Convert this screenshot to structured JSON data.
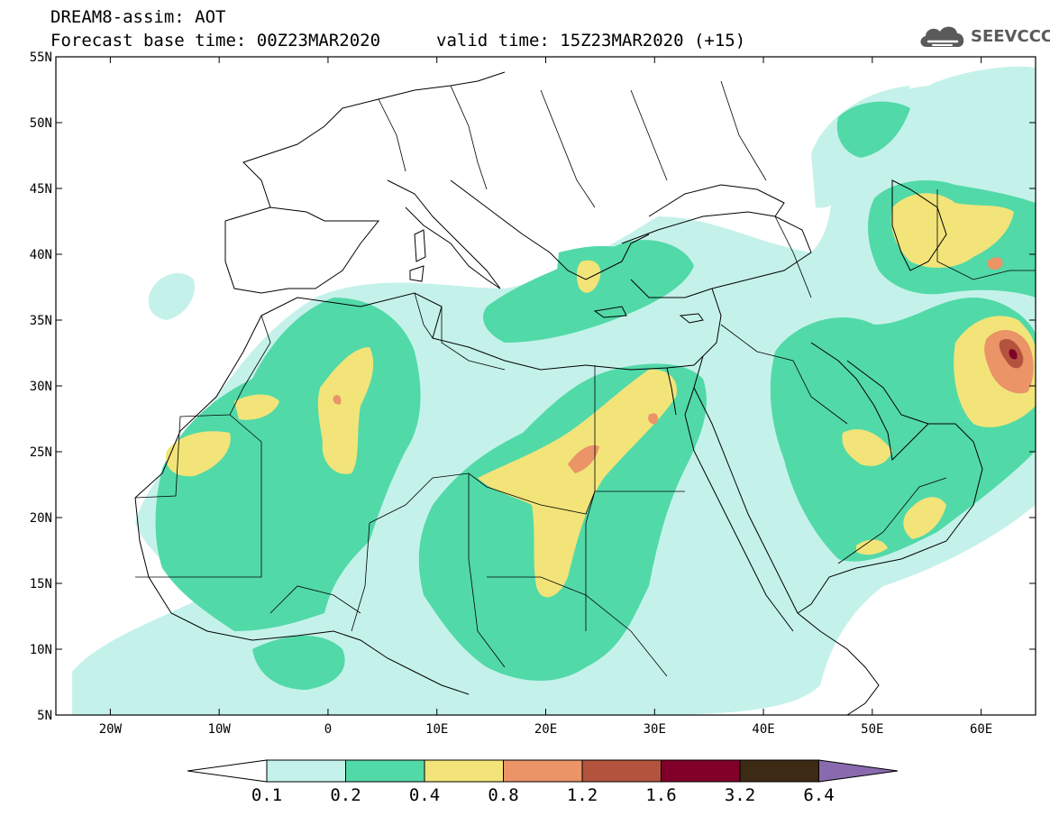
{
  "title": {
    "model": "DREAM8-assim: AOT",
    "base_time": "Forecast base time: 00Z23MAR2020",
    "valid_time": "valid time: 15Z23MAR2020 (+15)"
  },
  "logo": {
    "text": "SEEVCCC",
    "icon": "cloud-logo-icon"
  },
  "map": {
    "lat_labels": [
      "55N",
      "50N",
      "45N",
      "40N",
      "35N",
      "30N",
      "25N",
      "20N",
      "15N",
      "10N",
      "5N"
    ],
    "lon_labels": [
      "20W",
      "10W",
      "0",
      "10E",
      "20E",
      "30E",
      "40E",
      "50E",
      "60E"
    ],
    "extent": {
      "lon": [
        -25,
        65
      ],
      "lat": [
        5,
        55
      ]
    }
  },
  "legend": {
    "labels": [
      "0.1",
      "0.2",
      "0.4",
      "0.8",
      "1.2",
      "1.6",
      "3.2",
      "6.4"
    ],
    "colors": [
      "#ffffff",
      "#c4f2ea",
      "#52d9a8",
      "#f2e479",
      "#ea9467",
      "#b4533d",
      "#800029",
      "#3c2a14",
      "#8a6aaf"
    ]
  }
}
